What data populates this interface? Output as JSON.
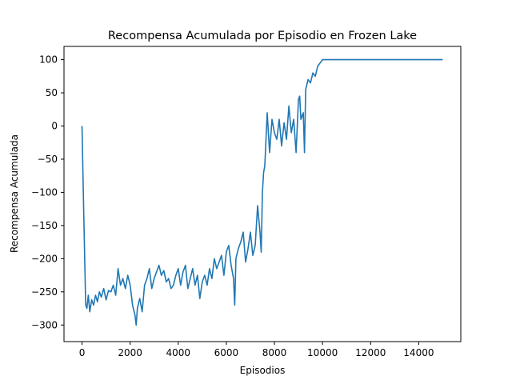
{
  "chart_data": {
    "type": "line",
    "title": "Recompensa Acumulada por Episodio en Frozen Lake",
    "xlabel": "Episodios",
    "ylabel": "Recompensa Acumulada",
    "xlim": [
      -750,
      15750
    ],
    "ylim": [
      -325,
      120
    ],
    "xticks": [
      0,
      2000,
      4000,
      6000,
      8000,
      10000,
      12000,
      14000
    ],
    "yticks": [
      -300,
      -250,
      -200,
      -150,
      -100,
      -50,
      0,
      50,
      100
    ],
    "grid": false,
    "legend": "none",
    "series": [
      {
        "color": "#1f77b4",
        "x": [
          0,
          80,
          150,
          200,
          260,
          320,
          400,
          480,
          560,
          640,
          720,
          800,
          900,
          1000,
          1100,
          1200,
          1300,
          1400,
          1500,
          1600,
          1700,
          1800,
          1900,
          2000,
          2100,
          2200,
          2250,
          2300,
          2400,
          2500,
          2600,
          2700,
          2800,
          2900,
          3000,
          3100,
          3200,
          3300,
          3400,
          3500,
          3600,
          3700,
          3800,
          3900,
          4000,
          4100,
          4200,
          4300,
          4400,
          4500,
          4600,
          4700,
          4800,
          4900,
          5000,
          5100,
          5200,
          5300,
          5400,
          5500,
          5600,
          5700,
          5800,
          5900,
          6000,
          6100,
          6200,
          6300,
          6350,
          6400,
          6500,
          6600,
          6700,
          6800,
          6900,
          7000,
          7100,
          7200,
          7300,
          7400,
          7450,
          7500,
          7550,
          7600,
          7700,
          7800,
          7900,
          8000,
          8100,
          8200,
          8300,
          8400,
          8500,
          8600,
          8700,
          8800,
          8900,
          9000,
          9050,
          9100,
          9200,
          9250,
          9300,
          9400,
          9500,
          9600,
          9700,
          9800,
          9900,
          10000,
          15000
        ],
        "y": [
          0,
          -150,
          -270,
          -275,
          -255,
          -280,
          -262,
          -270,
          -255,
          -265,
          -250,
          -258,
          -245,
          -262,
          -248,
          -250,
          -240,
          -255,
          -215,
          -240,
          -230,
          -245,
          -225,
          -240,
          -270,
          -285,
          -300,
          -275,
          -260,
          -280,
          -240,
          -230,
          -215,
          -245,
          -230,
          -220,
          -210,
          -225,
          -218,
          -235,
          -230,
          -245,
          -240,
          -225,
          -215,
          -240,
          -220,
          -210,
          -245,
          -230,
          -215,
          -240,
          -225,
          -260,
          -235,
          -225,
          -240,
          -215,
          -230,
          -200,
          -215,
          -205,
          -195,
          -225,
          -190,
          -180,
          -210,
          -230,
          -270,
          -200,
          -185,
          -175,
          -160,
          -205,
          -185,
          -160,
          -195,
          -180,
          -120,
          -160,
          -190,
          -100,
          -70,
          -60,
          20,
          -40,
          10,
          -10,
          -20,
          10,
          -30,
          5,
          -20,
          30,
          -10,
          10,
          -40,
          40,
          45,
          10,
          20,
          -40,
          55,
          70,
          65,
          80,
          75,
          90,
          95,
          100,
          100
        ]
      }
    ]
  }
}
